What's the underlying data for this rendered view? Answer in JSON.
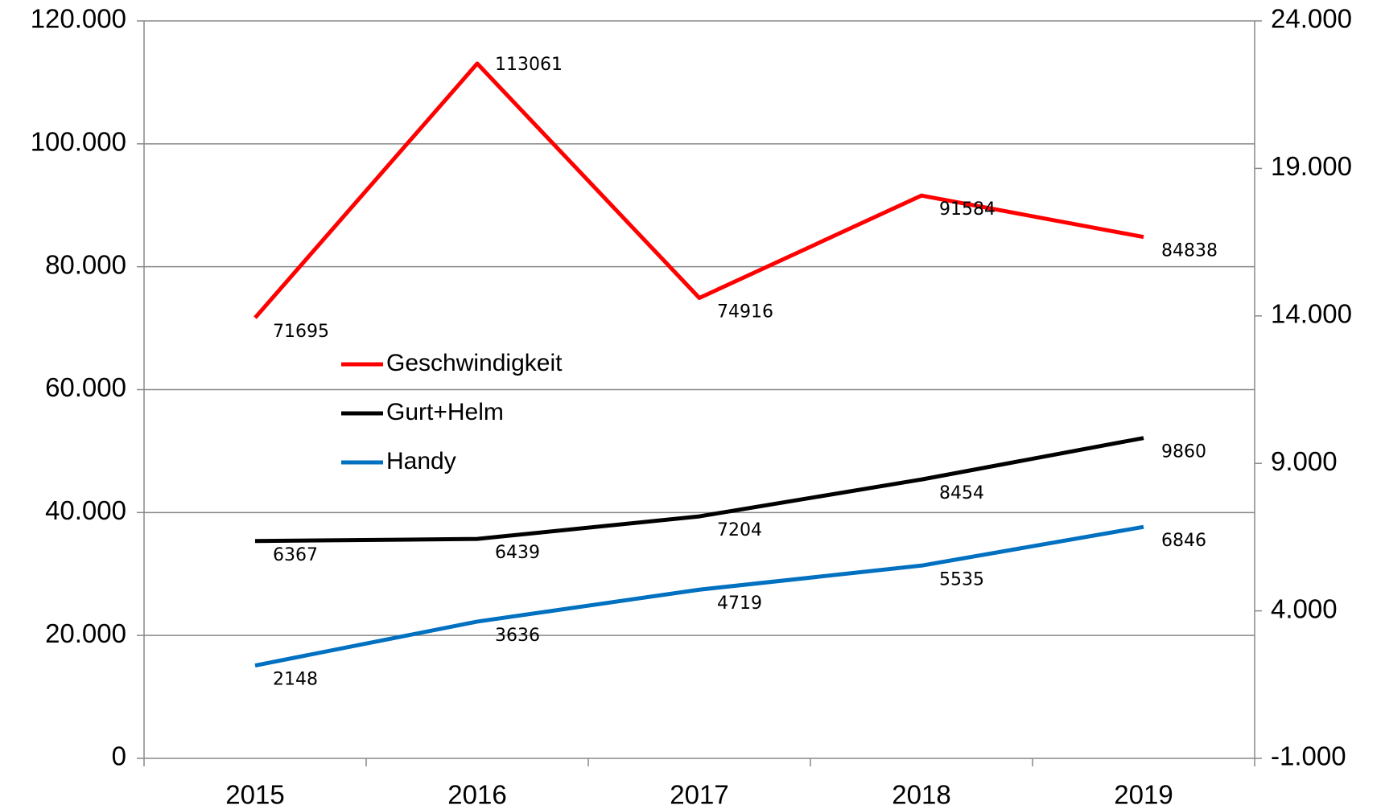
{
  "chart_data": {
    "type": "line",
    "categories": [
      "2015",
      "2016",
      "2017",
      "2018",
      "2019"
    ],
    "series": [
      {
        "name": "Geschwindigkeit",
        "color": "#ff0000",
        "values": [
          71695,
          113061,
          74916,
          91584,
          84838
        ]
      },
      {
        "name": "Gurt+Helm",
        "color": "#000000",
        "axis": "y2",
        "values": [
          6367,
          6439,
          7204,
          8454,
          9860
        ]
      },
      {
        "name": "Handy",
        "color": "#0070c0",
        "axis": "y2",
        "values": [
          2148,
          3636,
          4719,
          5535,
          6846
        ]
      }
    ],
    "ylim": [
      0,
      120000
    ],
    "yticks": [
      0,
      {
        "value": 20000,
        "label": "20.000"
      },
      {
        "value": 40000,
        "label": "40.000"
      },
      {
        "value": 60000,
        "label": "60.000"
      },
      {
        "value": 80000,
        "label": "80.000"
      },
      {
        "value": 100000,
        "label": "100.000"
      },
      {
        "value": 120000,
        "label": "120.000"
      }
    ],
    "y2lim": [
      -1000,
      24000
    ],
    "y2ticks": [
      {
        "value": -1000,
        "label": "-1.000"
      },
      {
        "value": 4000,
        "label": "4.000"
      },
      {
        "value": 9000,
        "label": "9.000"
      },
      {
        "value": 14000,
        "label": "14.000"
      },
      {
        "value": 19000,
        "label": "19.000"
      },
      {
        "value": 24000,
        "label": "24.000"
      }
    ],
    "grid": true
  }
}
